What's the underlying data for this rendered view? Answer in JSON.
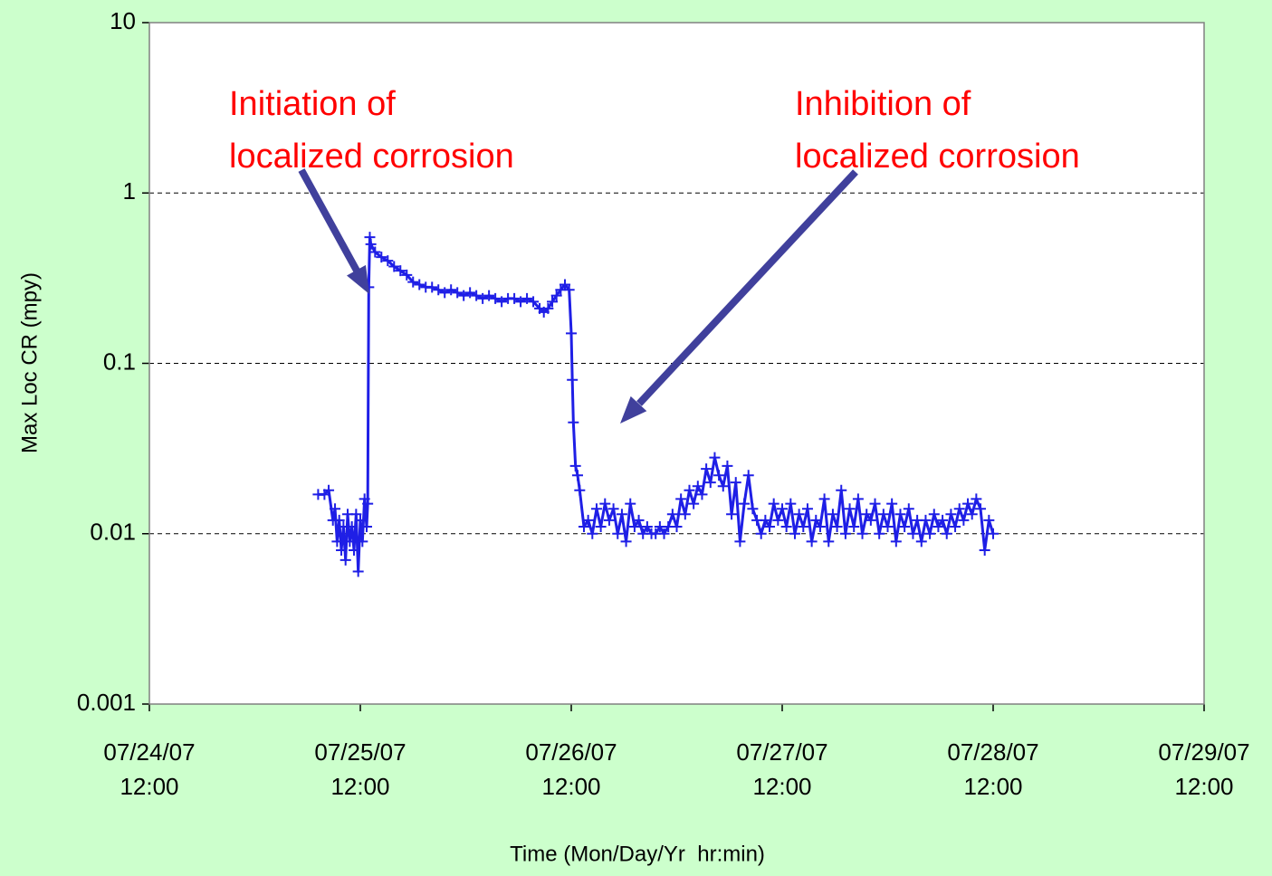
{
  "chart_data": {
    "type": "line",
    "x_label": "Time (Mon/Day/Yr  hr:min)",
    "y_label": "Max Loc CR (mpy)",
    "ylog": true,
    "grid": true,
    "xlim": [
      39287.5,
      39292.5
    ],
    "xticks": [
      {
        "value": 39287.5,
        "label": "07/24/07 12:00"
      },
      {
        "value": 39288.5,
        "label": "07/25/07 12:00"
      },
      {
        "value": 39289.5,
        "label": "07/26/07 12:00"
      },
      {
        "value": 39290.5,
        "label": "07/27/07 12:00"
      },
      {
        "value": 39291.5,
        "label": "07/28/07 12:00"
      },
      {
        "value": 39292.5,
        "label": "07/29/07 12:00"
      }
    ],
    "ylim": [
      0.001,
      10
    ],
    "yticks": [
      0.001,
      0.01,
      0.1,
      1,
      10
    ],
    "annotations": [
      {
        "lines": [
          "Initiation of",
          "localized corrosion"
        ]
      },
      {
        "lines": [
          "Inhibition of",
          "localized corrosion"
        ]
      }
    ],
    "series": [
      {
        "color": "#1f1fe6",
        "x": [
          39288.3,
          39288.33,
          39288.35,
          39288.37,
          39288.38,
          39288.39,
          39288.4,
          39288.41,
          39288.42,
          39288.43,
          39288.44,
          39288.45,
          39288.46,
          39288.47,
          39288.48,
          39288.49,
          39288.5,
          39288.51,
          39288.52,
          39288.53,
          39288.535,
          39288.54,
          39288.545,
          39288.55,
          39288.57,
          39288.6,
          39288.63,
          39288.66,
          39288.69,
          39288.72,
          39288.75,
          39288.78,
          39288.81,
          39288.84,
          39288.87,
          39288.9,
          39288.93,
          39288.96,
          39288.99,
          39289.02,
          39289.05,
          39289.08,
          39289.11,
          39289.14,
          39289.17,
          39289.2,
          39289.23,
          39289.26,
          39289.29,
          39289.32,
          39289.35,
          39289.37,
          39289.39,
          39289.41,
          39289.43,
          39289.45,
          39289.47,
          39289.49,
          39289.5,
          39289.505,
          39289.51,
          39289.52,
          39289.53,
          39289.54,
          39289.56,
          39289.58,
          39289.6,
          39289.62,
          39289.64,
          39289.66,
          39289.68,
          39289.7,
          39289.72,
          39289.74,
          39289.76,
          39289.78,
          39289.8,
          39289.82,
          39289.84,
          39289.86,
          39289.88,
          39289.9,
          39289.92,
          39289.94,
          39289.96,
          39289.98,
          39290.0,
          39290.02,
          39290.04,
          39290.06,
          39290.08,
          39290.1,
          39290.12,
          39290.14,
          39290.16,
          39290.18,
          39290.2,
          39290.22,
          39290.24,
          39290.26,
          39290.28,
          39290.3,
          39290.32,
          39290.34,
          39290.36,
          39290.38,
          39290.4,
          39290.42,
          39290.44,
          39290.46,
          39290.48,
          39290.5,
          39290.52,
          39290.54,
          39290.56,
          39290.58,
          39290.6,
          39290.62,
          39290.64,
          39290.66,
          39290.68,
          39290.7,
          39290.72,
          39290.74,
          39290.76,
          39290.78,
          39290.8,
          39290.82,
          39290.84,
          39290.86,
          39290.88,
          39290.9,
          39290.92,
          39290.94,
          39290.96,
          39290.98,
          39291.0,
          39291.02,
          39291.04,
          39291.06,
          39291.08,
          39291.1,
          39291.12,
          39291.14,
          39291.16,
          39291.18,
          39291.2,
          39291.22,
          39291.24,
          39291.26,
          39291.28,
          39291.3,
          39291.32,
          39291.34,
          39291.36,
          39291.38,
          39291.4,
          39291.42,
          39291.44,
          39291.46,
          39291.48,
          39291.5
        ],
        "values": [
          0.017,
          0.017,
          0.018,
          0.012,
          0.014,
          0.009,
          0.012,
          0.008,
          0.011,
          0.007,
          0.013,
          0.009,
          0.011,
          0.008,
          0.013,
          0.006,
          0.012,
          0.009,
          0.016,
          0.011,
          0.015,
          0.28,
          0.55,
          0.5,
          0.45,
          0.42,
          0.4,
          0.37,
          0.35,
          0.33,
          0.3,
          0.29,
          0.28,
          0.28,
          0.27,
          0.26,
          0.27,
          0.26,
          0.25,
          0.26,
          0.25,
          0.24,
          0.25,
          0.24,
          0.23,
          0.24,
          0.24,
          0.23,
          0.24,
          0.23,
          0.21,
          0.2,
          0.21,
          0.23,
          0.25,
          0.27,
          0.29,
          0.27,
          0.15,
          0.08,
          0.045,
          0.025,
          0.022,
          0.018,
          0.011,
          0.012,
          0.01,
          0.014,
          0.011,
          0.015,
          0.012,
          0.014,
          0.01,
          0.013,
          0.009,
          0.015,
          0.011,
          0.012,
          0.01,
          0.011,
          0.01,
          0.01,
          0.011,
          0.01,
          0.011,
          0.013,
          0.011,
          0.016,
          0.013,
          0.018,
          0.015,
          0.019,
          0.017,
          0.024,
          0.02,
          0.028,
          0.022,
          0.019,
          0.025,
          0.013,
          0.02,
          0.009,
          0.015,
          0.022,
          0.014,
          0.012,
          0.01,
          0.012,
          0.011,
          0.015,
          0.012,
          0.014,
          0.011,
          0.015,
          0.01,
          0.013,
          0.011,
          0.014,
          0.009,
          0.012,
          0.011,
          0.016,
          0.009,
          0.013,
          0.011,
          0.018,
          0.01,
          0.014,
          0.011,
          0.016,
          0.01,
          0.013,
          0.012,
          0.015,
          0.01,
          0.013,
          0.011,
          0.015,
          0.009,
          0.013,
          0.011,
          0.014,
          0.01,
          0.012,
          0.009,
          0.012,
          0.01,
          0.013,
          0.011,
          0.012,
          0.01,
          0.013,
          0.011,
          0.014,
          0.012,
          0.015,
          0.013,
          0.016,
          0.014,
          0.008,
          0.012,
          0.01
        ]
      }
    ]
  }
}
